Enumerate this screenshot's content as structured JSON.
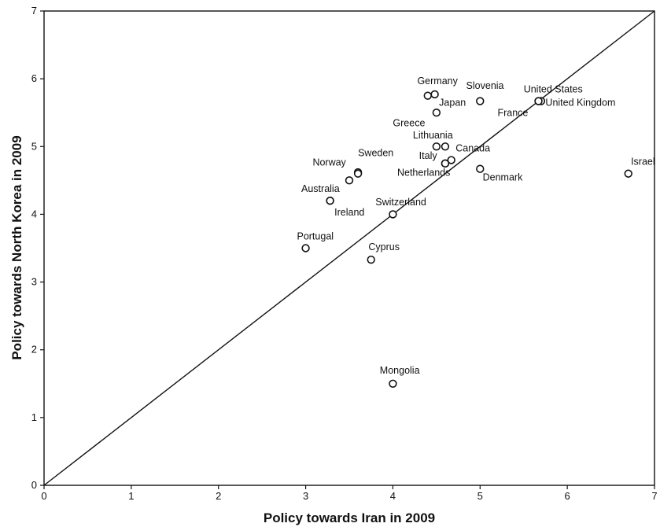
{
  "chart_data": {
    "type": "scatter",
    "xlabel": "Policy towards Iran in 2009",
    "ylabel": "Policy towards North Korea in 2009",
    "xlim": [
      0,
      7
    ],
    "ylim": [
      0,
      7
    ],
    "xticks": [
      0,
      1,
      2,
      3,
      4,
      5,
      6,
      7
    ],
    "yticks": [
      0,
      1,
      2,
      3,
      4,
      5,
      6,
      7
    ],
    "grid": false,
    "reference_line": {
      "from": [
        0,
        0
      ],
      "to": [
        7,
        7
      ]
    },
    "points": [
      {
        "label": "Germany",
        "x": 4.4,
        "y": 5.75
      },
      {
        "label": "Germany",
        "x": 4.48,
        "y": 5.77
      },
      {
        "label": "Slovenia",
        "x": 5.0,
        "y": 5.67
      },
      {
        "label": "United States",
        "x": 5.67,
        "y": 5.67
      },
      {
        "label": "United Kingdom",
        "x": 5.7,
        "y": 5.67
      },
      {
        "label": "Japan",
        "x": 4.5,
        "y": 5.5
      },
      {
        "label": "France",
        "x": 5.67,
        "y": 5.67
      },
      {
        "label": "Greece",
        "x": 4.5,
        "y": 5.0
      },
      {
        "label": "Lithuania",
        "x": 4.6,
        "y": 5.0
      },
      {
        "label": "Canada",
        "x": 4.67,
        "y": 4.8
      },
      {
        "label": "Italy",
        "x": 4.6,
        "y": 4.75
      },
      {
        "label": "Netherlands",
        "x": 4.6,
        "y": 4.75
      },
      {
        "label": "Denmark",
        "x": 5.0,
        "y": 4.67
      },
      {
        "label": "Israel",
        "x": 6.7,
        "y": 4.6
      },
      {
        "label": "Sweden",
        "x": 3.6,
        "y": 4.62
      },
      {
        "label": "Norway",
        "x": 3.6,
        "y": 4.6
      },
      {
        "label": "Norway",
        "x": 3.5,
        "y": 4.5
      },
      {
        "label": "Australia",
        "x": 3.28,
        "y": 4.2
      },
      {
        "label": "Ireland",
        "x": 3.28,
        "y": 4.2
      },
      {
        "label": "Switzerland",
        "x": 4.0,
        "y": 4.0
      },
      {
        "label": "Portugal",
        "x": 3.0,
        "y": 3.5
      },
      {
        "label": "Cyprus",
        "x": 3.75,
        "y": 3.33
      },
      {
        "label": "Mongolia",
        "x": 4.0,
        "y": 1.5
      }
    ],
    "labels": [
      {
        "text": "Germany",
        "x": 4.28,
        "y": 5.92
      },
      {
        "text": "Slovenia",
        "x": 4.84,
        "y": 5.85
      },
      {
        "text": "United States",
        "x": 5.5,
        "y": 5.8
      },
      {
        "text": "United Kingdom",
        "x": 5.75,
        "y": 5.6
      },
      {
        "text": "Japan",
        "x": 4.53,
        "y": 5.6
      },
      {
        "text": "France",
        "x": 5.2,
        "y": 5.45
      },
      {
        "text": "Greece",
        "x": 4.0,
        "y": 5.3
      },
      {
        "text": "Lithuania",
        "x": 4.23,
        "y": 5.12
      },
      {
        "text": "Canada",
        "x": 4.72,
        "y": 4.93
      },
      {
        "text": "Italy",
        "x": 4.3,
        "y": 4.82
      },
      {
        "text": "Netherlands",
        "x": 4.05,
        "y": 4.57
      },
      {
        "text": "Denmark",
        "x": 5.03,
        "y": 4.5
      },
      {
        "text": "Israel",
        "x": 6.73,
        "y": 4.73
      },
      {
        "text": "Sweden",
        "x": 3.6,
        "y": 4.86
      },
      {
        "text": "Norway",
        "x": 3.08,
        "y": 4.72
      },
      {
        "text": "Australia",
        "x": 2.95,
        "y": 4.33
      },
      {
        "text": "Ireland",
        "x": 3.33,
        "y": 3.98
      },
      {
        "text": "Switzerland",
        "x": 3.8,
        "y": 4.13
      },
      {
        "text": "Portugal",
        "x": 2.9,
        "y": 3.63
      },
      {
        "text": "Cyprus",
        "x": 3.72,
        "y": 3.47
      },
      {
        "text": "Mongolia",
        "x": 3.85,
        "y": 1.65
      }
    ]
  }
}
